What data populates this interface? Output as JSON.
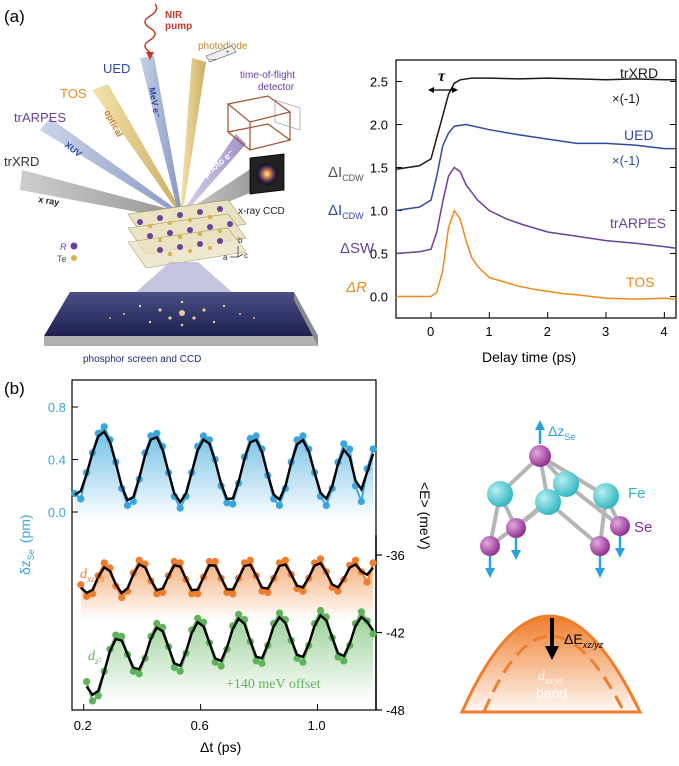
{
  "panel_a": {
    "label": "(a)",
    "schematic": {
      "pump_label_1": "NIR",
      "pump_label_2": "pump",
      "photodiode": "photodiode",
      "tof_1": "time-of-flight",
      "tof_2": "detector",
      "ued": "UED",
      "tos": "TOS",
      "trarpes": "trARPES",
      "trxrd": "trXRD",
      "mev": "MeV e⁻",
      "optical": "optical",
      "xuv": "XUV",
      "photo_e": "photo e⁻",
      "xray": "x ray",
      "xray_ccd": "x-ray CCD",
      "r_label": "R",
      "te_label": "Te",
      "axis_b": "b",
      "axis_a": "a",
      "axis_c": "c",
      "screen": "phosphor screen and CCD"
    },
    "colors": {
      "trxrd": "#1a1a1a",
      "ued": "#2f4aa0",
      "trarpes": "#6b3f9c",
      "tos": "#ee8a1a"
    }
  },
  "panel_b": {
    "label": "(b)",
    "colors": {
      "dz": "#3aa7dc",
      "dxz": "#ee7d2c",
      "dz2": "#5db45a",
      "fit": "#000000"
    },
    "legend": {
      "dxz_label": "d",
      "dxz_sub": "xz/yz",
      "dz2_label": "d",
      "dz2_sub": "z²",
      "offset": "+140 meV offset"
    },
    "molecule": {
      "dz_label": "Δz",
      "dz_sub": "Se",
      "fe": "Fe",
      "se": "Se"
    },
    "band": {
      "de_label": "ΔE",
      "de_sub": "xz/yz",
      "band_d": "d",
      "band_sub": "xz/yz",
      "band_word": "band"
    }
  },
  "chart_data": [
    {
      "type": "line",
      "xlabel": "Delay time (ps)",
      "xlim": [
        -0.6,
        4.2
      ],
      "xticks": [
        0,
        1,
        2,
        3,
        4
      ],
      "ylim": [
        -0.25,
        2.75
      ],
      "yticks": [
        0.0,
        0.5,
        1.0,
        1.5,
        2.0,
        2.5
      ],
      "ytick_labels": [
        "0.0",
        "0.5",
        "1.0",
        "1.5",
        "2.0",
        "2.5"
      ],
      "tau_label": "τ",
      "left_labels": [
        {
          "text": "ΔI",
          "sub": "CDW",
          "color": "#555555"
        },
        {
          "text": "ΔI",
          "sub": "CDW",
          "color": "#2f4aa0"
        },
        {
          "text": "ΔSW",
          "sub": "",
          "color": "#6b3f9c"
        },
        {
          "text": "ΔR",
          "sub": "",
          "color": "#ee8a1a"
        }
      ],
      "series": [
        {
          "name": "trXRD",
          "annotation": "×(-1)",
          "color": "#1a1a1a",
          "x": [
            -0.6,
            -0.4,
            -0.2,
            0.0,
            0.1,
            0.2,
            0.3,
            0.4,
            0.5,
            0.7,
            1.0,
            1.5,
            2.0,
            2.5,
            3.0,
            3.5,
            4.0,
            4.2
          ],
          "y": [
            1.48,
            1.5,
            1.52,
            1.6,
            1.85,
            2.1,
            2.35,
            2.48,
            2.52,
            2.54,
            2.54,
            2.53,
            2.54,
            2.53,
            2.52,
            2.53,
            2.52,
            2.52
          ]
        },
        {
          "name": "UED",
          "annotation": "×(-1)",
          "color": "#2f4aa0",
          "x": [
            -0.6,
            -0.4,
            -0.2,
            0.0,
            0.1,
            0.2,
            0.3,
            0.4,
            0.6,
            1.0,
            1.5,
            2.0,
            2.5,
            3.0,
            3.5,
            4.0,
            4.2
          ],
          "y": [
            1.0,
            1.02,
            1.04,
            1.12,
            1.4,
            1.75,
            1.9,
            1.98,
            2.0,
            1.94,
            1.88,
            1.83,
            1.78,
            1.78,
            1.76,
            1.72,
            1.72
          ]
        },
        {
          "name": "trARPES",
          "color": "#6b3f9c",
          "x": [
            -0.6,
            -0.4,
            -0.2,
            0.0,
            0.1,
            0.2,
            0.3,
            0.4,
            0.5,
            0.6,
            0.8,
            1.0,
            1.3,
            1.6,
            2.0,
            2.5,
            3.0,
            3.5,
            4.0,
            4.2
          ],
          "y": [
            0.5,
            0.51,
            0.52,
            0.55,
            0.75,
            1.1,
            1.4,
            1.5,
            1.45,
            1.3,
            1.12,
            1.0,
            0.9,
            0.83,
            0.75,
            0.7,
            0.65,
            0.62,
            0.58,
            0.56
          ]
        },
        {
          "name": "TOS",
          "color": "#ee8a1a",
          "x": [
            -0.6,
            -0.3,
            0.0,
            0.1,
            0.2,
            0.3,
            0.4,
            0.5,
            0.6,
            0.7,
            0.8,
            1.0,
            1.2,
            1.5,
            1.8,
            2.0,
            2.3,
            2.5,
            3.0,
            3.5,
            4.0,
            4.2
          ],
          "y": [
            0.0,
            0.0,
            0.0,
            0.05,
            0.3,
            0.8,
            1.0,
            0.9,
            0.65,
            0.45,
            0.35,
            0.22,
            0.18,
            0.12,
            0.08,
            0.06,
            0.03,
            0.02,
            -0.02,
            -0.03,
            -0.02,
            -0.03
          ]
        }
      ]
    },
    {
      "type": "scatter",
      "xlabel": "Δt (ps)",
      "xlim": [
        0.16,
        1.2
      ],
      "xticks": [
        0.2,
        0.6,
        1.0
      ],
      "left_axis": {
        "label": "δz",
        "label_sub": "Se",
        "unit": "(pm)",
        "ylim": [
          -0.25,
          0.82
        ],
        "ticks": [
          0.0,
          0.4,
          0.8
        ],
        "tick_labels": [
          "0.0",
          "0.4",
          "0.8"
        ]
      },
      "right_axis": {
        "label": "<E> (meV)",
        "ylim": [
          -48,
          -31.5
        ],
        "ticks": [
          -36,
          -42,
          -48
        ],
        "tick_labels": [
          "-36",
          "-42",
          "-48"
        ]
      },
      "series": [
        {
          "name": "δz_Se",
          "axis": "left",
          "color": "#3aa7dc",
          "x": [
            0.17,
            0.19,
            0.21,
            0.23,
            0.25,
            0.27,
            0.29,
            0.31,
            0.33,
            0.35,
            0.37,
            0.39,
            0.41,
            0.43,
            0.45,
            0.47,
            0.49,
            0.51,
            0.53,
            0.55,
            0.57,
            0.59,
            0.61,
            0.63,
            0.65,
            0.67,
            0.69,
            0.71,
            0.73,
            0.75,
            0.77,
            0.79,
            0.81,
            0.83,
            0.85,
            0.87,
            0.89,
            0.91,
            0.93,
            0.95,
            0.97,
            0.99,
            1.01,
            1.03,
            1.05,
            1.07,
            1.09,
            1.11,
            1.13,
            1.15,
            1.17,
            1.19
          ],
          "y": [
            0.14,
            0.1,
            0.3,
            0.45,
            0.6,
            0.65,
            0.55,
            0.38,
            0.18,
            0.05,
            0.08,
            0.25,
            0.45,
            0.58,
            0.6,
            0.5,
            0.3,
            0.12,
            0.03,
            0.12,
            0.3,
            0.5,
            0.58,
            0.55,
            0.4,
            0.2,
            0.07,
            0.06,
            0.22,
            0.42,
            0.56,
            0.58,
            0.48,
            0.28,
            0.1,
            0.05,
            0.18,
            0.38,
            0.55,
            0.58,
            0.48,
            0.3,
            0.12,
            0.05,
            0.18,
            0.38,
            0.52,
            0.48,
            0.2,
            0.08,
            0.33,
            0.48
          ]
        },
        {
          "name": "d_xz/yz",
          "axis": "right",
          "color": "#ee7d2c",
          "x": [
            0.19,
            0.21,
            0.23,
            0.25,
            0.27,
            0.29,
            0.31,
            0.33,
            0.35,
            0.37,
            0.39,
            0.41,
            0.43,
            0.45,
            0.47,
            0.49,
            0.51,
            0.53,
            0.55,
            0.57,
            0.59,
            0.61,
            0.63,
            0.65,
            0.67,
            0.69,
            0.71,
            0.73,
            0.75,
            0.77,
            0.79,
            0.81,
            0.83,
            0.85,
            0.87,
            0.89,
            0.91,
            0.93,
            0.95,
            0.97,
            0.99,
            1.01,
            1.03,
            1.05,
            1.07,
            1.09,
            1.11,
            1.13,
            1.15,
            1.17,
            1.19
          ],
          "y": [
            -38.3,
            -39.2,
            -39.0,
            -37.6,
            -36.6,
            -37.0,
            -38.4,
            -39.3,
            -38.8,
            -37.4,
            -36.4,
            -36.7,
            -38.0,
            -39.0,
            -38.9,
            -37.6,
            -36.5,
            -36.6,
            -37.9,
            -39.0,
            -39.0,
            -37.7,
            -36.5,
            -36.5,
            -37.8,
            -38.9,
            -39.0,
            -37.8,
            -36.6,
            -36.4,
            -37.6,
            -38.8,
            -38.9,
            -37.8,
            -36.6,
            -36.4,
            -37.5,
            -38.6,
            -38.8,
            -37.8,
            -36.6,
            -36.3,
            -37.3,
            -38.5,
            -38.8,
            -37.9,
            -36.8,
            -36.4,
            -37.3,
            -38.1,
            -36.6
          ]
        },
        {
          "name": "d_z2",
          "axis": "right",
          "color": "#5db45a",
          "x": [
            0.21,
            0.23,
            0.25,
            0.27,
            0.29,
            0.31,
            0.33,
            0.35,
            0.37,
            0.39,
            0.41,
            0.43,
            0.45,
            0.47,
            0.49,
            0.51,
            0.53,
            0.55,
            0.57,
            0.59,
            0.61,
            0.63,
            0.65,
            0.67,
            0.69,
            0.71,
            0.73,
            0.75,
            0.77,
            0.79,
            0.81,
            0.83,
            0.85,
            0.87,
            0.89,
            0.91,
            0.93,
            0.95,
            0.97,
            0.99,
            1.01,
            1.03,
            1.05,
            1.07,
            1.09,
            1.11,
            1.13,
            1.15,
            1.17,
            1.19
          ],
          "y": [
            -45.8,
            -47.3,
            -46.9,
            -45.0,
            -43.3,
            -42.2,
            -42.3,
            -43.7,
            -45.0,
            -45.2,
            -44.0,
            -42.3,
            -41.3,
            -41.6,
            -43.1,
            -44.7,
            -45.0,
            -43.6,
            -41.8,
            -40.9,
            -41.2,
            -42.8,
            -44.3,
            -44.6,
            -43.3,
            -41.5,
            -40.6,
            -41.0,
            -42.7,
            -44.2,
            -44.4,
            -43.0,
            -41.3,
            -40.5,
            -41.0,
            -42.6,
            -44.0,
            -44.3,
            -43.0,
            -41.3,
            -40.3,
            -40.8,
            -42.4,
            -43.9,
            -44.2,
            -43.0,
            -41.3,
            -40.4,
            -41.1,
            -42.1
          ]
        }
      ]
    }
  ]
}
